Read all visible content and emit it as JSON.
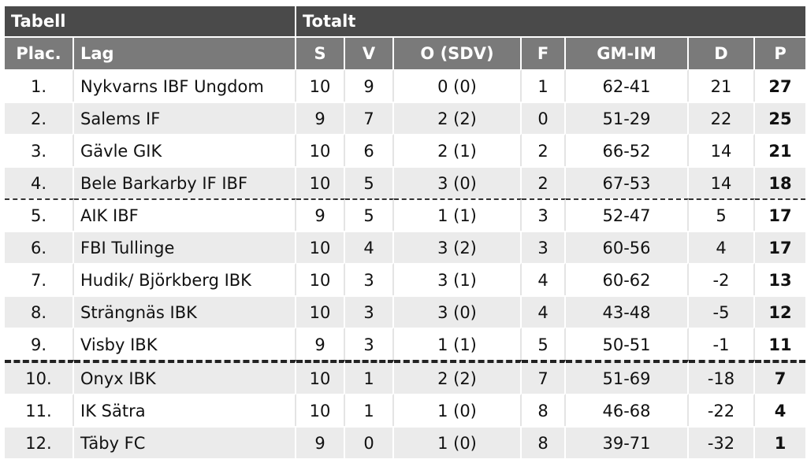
{
  "table": {
    "group_headers": {
      "left": "Tabell",
      "right": "Totalt"
    },
    "columns": {
      "plac": "Plac.",
      "lag": "Lag",
      "s": "S",
      "v": "V",
      "o": "O (SDV)",
      "f": "F",
      "gmim": "GM-IM",
      "d": "D",
      "p": "P"
    },
    "rows": [
      {
        "plac": "1.",
        "lag": "Nykvarns IBF Ungdom",
        "s": "10",
        "v": "9",
        "o": "0 (0)",
        "f": "1",
        "gmim": "62-41",
        "d": "21",
        "p": "27"
      },
      {
        "plac": "2.",
        "lag": "Salems IF",
        "s": "9",
        "v": "7",
        "o": "2 (2)",
        "f": "0",
        "gmim": "51-29",
        "d": "22",
        "p": "25"
      },
      {
        "plac": "3.",
        "lag": "Gävle GIK",
        "s": "10",
        "v": "6",
        "o": "2 (1)",
        "f": "2",
        "gmim": "66-52",
        "d": "14",
        "p": "21"
      },
      {
        "plac": "4.",
        "lag": "Bele Barkarby IF IBF",
        "s": "10",
        "v": "5",
        "o": "3 (0)",
        "f": "2",
        "gmim": "67-53",
        "d": "14",
        "p": "18"
      },
      {
        "plac": "5.",
        "lag": "AIK IBF",
        "s": "9",
        "v": "5",
        "o": "1 (1)",
        "f": "3",
        "gmim": "52-47",
        "d": "5",
        "p": "17"
      },
      {
        "plac": "6.",
        "lag": "FBI Tullinge",
        "s": "10",
        "v": "4",
        "o": "3 (2)",
        "f": "3",
        "gmim": "60-56",
        "d": "4",
        "p": "17"
      },
      {
        "plac": "7.",
        "lag": "Hudik/ Björkberg IBK",
        "s": "10",
        "v": "3",
        "o": "3 (1)",
        "f": "4",
        "gmim": "60-62",
        "d": "-2",
        "p": "13"
      },
      {
        "plac": "8.",
        "lag": "Strängnäs IBK",
        "s": "10",
        "v": "3",
        "o": "3 (0)",
        "f": "4",
        "gmim": "43-48",
        "d": "-5",
        "p": "12"
      },
      {
        "plac": "9.",
        "lag": "Visby IBK",
        "s": "9",
        "v": "3",
        "o": "1 (1)",
        "f": "5",
        "gmim": "50-51",
        "d": "-1",
        "p": "11"
      },
      {
        "plac": "10.",
        "lag": "Onyx IBK",
        "s": "10",
        "v": "1",
        "o": "2 (2)",
        "f": "7",
        "gmim": "51-69",
        "d": "-18",
        "p": "7"
      },
      {
        "plac": "11.",
        "lag": "IK Sätra",
        "s": "10",
        "v": "1",
        "o": "1 (0)",
        "f": "8",
        "gmim": "46-68",
        "d": "-22",
        "p": "4"
      },
      {
        "plac": "12.",
        "lag": "Täby FC",
        "s": "9",
        "v": "0",
        "o": "1 (0)",
        "f": "8",
        "gmim": "39-71",
        "d": "-32",
        "p": "1"
      }
    ]
  }
}
